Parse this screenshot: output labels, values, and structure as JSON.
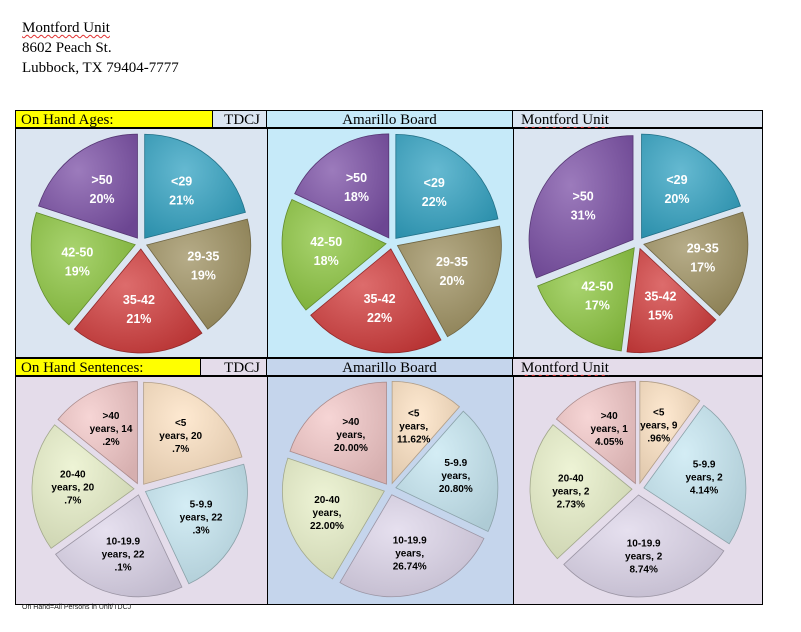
{
  "address": {
    "name": "Montford Unit",
    "street": "8602 Peach St.",
    "city": "Lubbock, TX 79404-7777"
  },
  "rows": [
    {
      "title": "On Hand Ages:",
      "tdcj_label": "TDCJ",
      "col2_label": "Amarillo Board",
      "col3_label": "Montford Unit"
    },
    {
      "title": "On Hand Sentences:",
      "tdcj_label": "TDCJ",
      "col2_label": "Amarillo Board",
      "col3_label": "Montford Unit"
    }
  ],
  "footnote": "On Hand=All Persons in Unit/TDCJ",
  "colors": {
    "ages": [
      "#31a2c2",
      "#9e9060",
      "#d13b3b",
      "#8cc63f",
      "#7b4fa6"
    ],
    "sentences": [
      "#fde2c2",
      "#c6e7f2",
      "#ddd5ea",
      "#e8f0c8",
      "#f3c7c7"
    ],
    "panel_bg_ages": [
      "#dbe5f1",
      "#c6eaf9",
      "#dbe5f1"
    ],
    "panel_bg_sentences": [
      "#e4dcea",
      "#c5d5ec",
      "#e4dcea"
    ],
    "header_bg_sentences": [
      "#e4dcea",
      "#c5d5ec",
      "#e4dcea"
    ],
    "header_bg_ages": [
      "#dbe5f1",
      "#c6eaf9",
      "#dbe5f1"
    ]
  },
  "chart_data": [
    {
      "type": "pie",
      "title": "On Hand Ages: TDCJ",
      "categories": [
        "<29",
        "29-35",
        "35-42",
        "42-50",
        ">50"
      ],
      "values": [
        21,
        19,
        21,
        19,
        20
      ],
      "labels": [
        [
          "<29",
          "21%"
        ],
        [
          "29-35",
          "19%"
        ],
        [
          "35-42",
          "21%"
        ],
        [
          "42-50",
          "19%"
        ],
        [
          ">50",
          "20%"
        ]
      ]
    },
    {
      "type": "pie",
      "title": "On Hand Ages: Amarillo Board",
      "categories": [
        "<29",
        "29-35",
        "35-42",
        "42-50",
        ">50"
      ],
      "values": [
        22,
        20,
        22,
        18,
        18
      ],
      "labels": [
        [
          "<29",
          "22%"
        ],
        [
          "29-35",
          "20%"
        ],
        [
          "35-42",
          "22%"
        ],
        [
          "42-50",
          "18%"
        ],
        [
          ">50",
          "18%"
        ]
      ]
    },
    {
      "type": "pie",
      "title": "On Hand Ages: Montford Unit",
      "categories": [
        "<29",
        "29-35",
        "35-42",
        "42-50",
        ">50"
      ],
      "values": [
        20,
        17,
        15,
        17,
        31
      ],
      "labels": [
        [
          "<29",
          "20%"
        ],
        [
          "29-35",
          "17%"
        ],
        [
          "35-42",
          "15%"
        ],
        [
          "42-50",
          "17%"
        ],
        [
          ">50",
          "31%"
        ]
      ]
    },
    {
      "type": "pie",
      "title": "On Hand Sentences: TDCJ",
      "categories": [
        "<5",
        "5-9.9",
        "10-19.9",
        "20-40",
        ">40"
      ],
      "values": [
        20.7,
        22.3,
        22.1,
        20.7,
        14.2
      ],
      "labels": [
        [
          "<5",
          "years, 20",
          ".7%"
        ],
        [
          "5-9.9",
          "years, 22",
          ".3%"
        ],
        [
          "10-19.9",
          "years, 22",
          ".1%"
        ],
        [
          "20-40",
          "years, 20",
          ".7%"
        ],
        [
          ">40",
          "years, 14",
          ".2%"
        ]
      ]
    },
    {
      "type": "pie",
      "title": "On Hand Sentences: Amarillo Board",
      "categories": [
        "<5",
        "5-9.9",
        "10-19.9",
        "20-40",
        ">40"
      ],
      "values": [
        11.62,
        20.8,
        26.74,
        22.0,
        20.0
      ],
      "labels": [
        [
          "<5",
          "years,",
          "11.62%"
        ],
        [
          "5-9.9",
          "years,",
          "20.80%"
        ],
        [
          "10-19.9",
          "years,",
          "26.74%"
        ],
        [
          "20-40",
          "years,",
          "22.00%"
        ],
        [
          ">40",
          "years,",
          "20.00%"
        ]
      ]
    },
    {
      "type": "pie",
      "title": "On Hand Sentences: Montford Unit",
      "categories": [
        "<5",
        "5-9.9",
        "10-19.9",
        "20-40",
        ">40"
      ],
      "values": [
        9.96,
        24.14,
        28.74,
        22.73,
        14.05
      ],
      "labels": [
        [
          "<5",
          "years, 9",
          ".96%"
        ],
        [
          "5-9.9",
          "years, 2",
          "4.14%"
        ],
        [
          "10-19.9",
          "years, 2",
          "8.74%"
        ],
        [
          "20-40",
          "years, 2",
          "2.73%"
        ],
        [
          ">40",
          "years, 1",
          "4.05%"
        ]
      ]
    }
  ]
}
